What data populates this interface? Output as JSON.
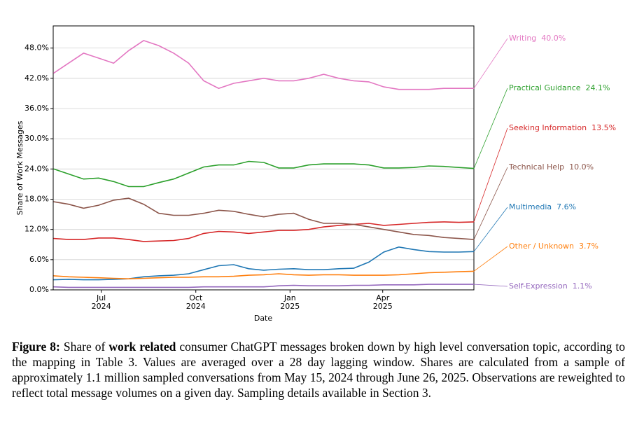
{
  "chart_data": {
    "type": "line",
    "xlabel": "Date",
    "ylabel": "Share of Work Messages",
    "x": [
      2024.37,
      2024.41,
      2024.45,
      2024.49,
      2024.53,
      2024.57,
      2024.61,
      2024.65,
      2024.69,
      2024.73,
      2024.77,
      2024.81,
      2024.85,
      2024.89,
      2024.93,
      2024.97,
      2025.01,
      2025.05,
      2025.09,
      2025.13,
      2025.17,
      2025.21,
      2025.25,
      2025.29,
      2025.33,
      2025.37,
      2025.41,
      2025.45,
      2025.49
    ],
    "xlim": [
      2024.369,
      2025.49
    ],
    "xticks": [
      {
        "value": 2024.497,
        "label": "Jul\n2024"
      },
      {
        "value": 2024.749,
        "label": "Oct\n2024"
      },
      {
        "value": 2025.0,
        "label": "Jan\n2025"
      },
      {
        "value": 2025.247,
        "label": "Apr\n2025"
      }
    ],
    "ylim": [
      0,
      52.4
    ],
    "yticks": [
      {
        "value": 0,
        "label": "0.0%"
      },
      {
        "value": 6,
        "label": "6.0%"
      },
      {
        "value": 12,
        "label": "12.0%"
      },
      {
        "value": 18,
        "label": "18.0%"
      },
      {
        "value": 24,
        "label": "24.0%"
      },
      {
        "value": 30,
        "label": "30.0%"
      },
      {
        "value": 36,
        "label": "36.0%"
      },
      {
        "value": 42,
        "label": "42.0%"
      },
      {
        "value": 48,
        "label": "48.0%"
      }
    ],
    "grid": true,
    "series": [
      {
        "name": "Writing",
        "color": "#e377c2",
        "end_label": "40.0%",
        "values": [
          43.0,
          45.0,
          47.0,
          46.0,
          45.0,
          47.5,
          49.5,
          48.5,
          47.0,
          45.0,
          41.5,
          40.0,
          41.0,
          41.5,
          42.0,
          41.5,
          41.5,
          42.0,
          42.8,
          42.0,
          41.5,
          41.3,
          40.3,
          39.8,
          39.8,
          39.8,
          40.0,
          40.0,
          40.0
        ]
      },
      {
        "name": "Practical Guidance",
        "color": "#2ca02c",
        "end_label": "24.1%",
        "values": [
          24.0,
          23.0,
          22.0,
          22.2,
          21.5,
          20.5,
          20.5,
          21.3,
          22.0,
          23.2,
          24.4,
          24.8,
          24.8,
          25.5,
          25.3,
          24.2,
          24.2,
          24.8,
          25.0,
          25.0,
          25.0,
          24.8,
          24.2,
          24.2,
          24.3,
          24.6,
          24.5,
          24.3,
          24.1
        ]
      },
      {
        "name": "Seeking Information",
        "color": "#d62728",
        "end_label": "13.5%",
        "values": [
          10.2,
          10.0,
          10.0,
          10.3,
          10.3,
          10.0,
          9.6,
          9.7,
          9.8,
          10.2,
          11.2,
          11.6,
          11.5,
          11.2,
          11.5,
          11.8,
          11.8,
          12.0,
          12.5,
          12.8,
          13.0,
          13.2,
          12.8,
          13.0,
          13.2,
          13.4,
          13.5,
          13.4,
          13.5
        ]
      },
      {
        "name": "Technical Help",
        "color": "#8c564b",
        "end_label": "10.0%",
        "values": [
          17.5,
          17.0,
          16.2,
          16.8,
          17.8,
          18.2,
          17.0,
          15.2,
          14.8,
          14.8,
          15.2,
          15.8,
          15.6,
          15.0,
          14.5,
          15.0,
          15.2,
          14.0,
          13.2,
          13.2,
          13.0,
          12.5,
          12.0,
          11.5,
          11.0,
          10.8,
          10.4,
          10.2,
          10.0
        ]
      },
      {
        "name": "Multimedia",
        "color": "#1f77b4",
        "end_label": "7.6%",
        "values": [
          2.0,
          2.1,
          2.0,
          2.0,
          2.1,
          2.2,
          2.6,
          2.8,
          2.9,
          3.2,
          4.0,
          4.8,
          5.0,
          4.2,
          3.9,
          4.1,
          4.2,
          4.0,
          4.0,
          4.2,
          4.3,
          5.5,
          7.5,
          8.5,
          8.0,
          7.6,
          7.5,
          7.5,
          7.6
        ]
      },
      {
        "name": "Other / Unknown",
        "color": "#ff7f0e",
        "end_label": "3.7%",
        "values": [
          2.8,
          2.6,
          2.5,
          2.4,
          2.3,
          2.2,
          2.3,
          2.4,
          2.5,
          2.5,
          2.6,
          2.6,
          2.7,
          2.9,
          3.0,
          3.2,
          3.0,
          2.9,
          3.0,
          3.0,
          2.9,
          2.9,
          2.9,
          3.0,
          3.2,
          3.4,
          3.5,
          3.6,
          3.7
        ]
      },
      {
        "name": "Self-Expression",
        "color": "#9467bd",
        "end_label": "1.1%",
        "values": [
          0.6,
          0.5,
          0.5,
          0.5,
          0.5,
          0.5,
          0.5,
          0.5,
          0.5,
          0.5,
          0.6,
          0.6,
          0.6,
          0.6,
          0.6,
          0.8,
          0.9,
          0.8,
          0.8,
          0.8,
          0.9,
          0.9,
          1.0,
          1.0,
          1.0,
          1.1,
          1.1,
          1.1,
          1.1
        ]
      }
    ]
  },
  "caption": {
    "label": "Figure 8:",
    "parts": [
      "Share of ",
      "work related",
      " consumer ChatGPT messages broken down by high level conversation topic, according to the mapping in Table 3. Values are averaged over a 28 day lagging window. Shares are calculated from a sample of approximately 1.1 million sampled conversations from May 15, 2024 through June 26, 2025. Observations are reweighted to reflect total message volumes on a given day. Sampling details available in Section 3."
    ]
  }
}
